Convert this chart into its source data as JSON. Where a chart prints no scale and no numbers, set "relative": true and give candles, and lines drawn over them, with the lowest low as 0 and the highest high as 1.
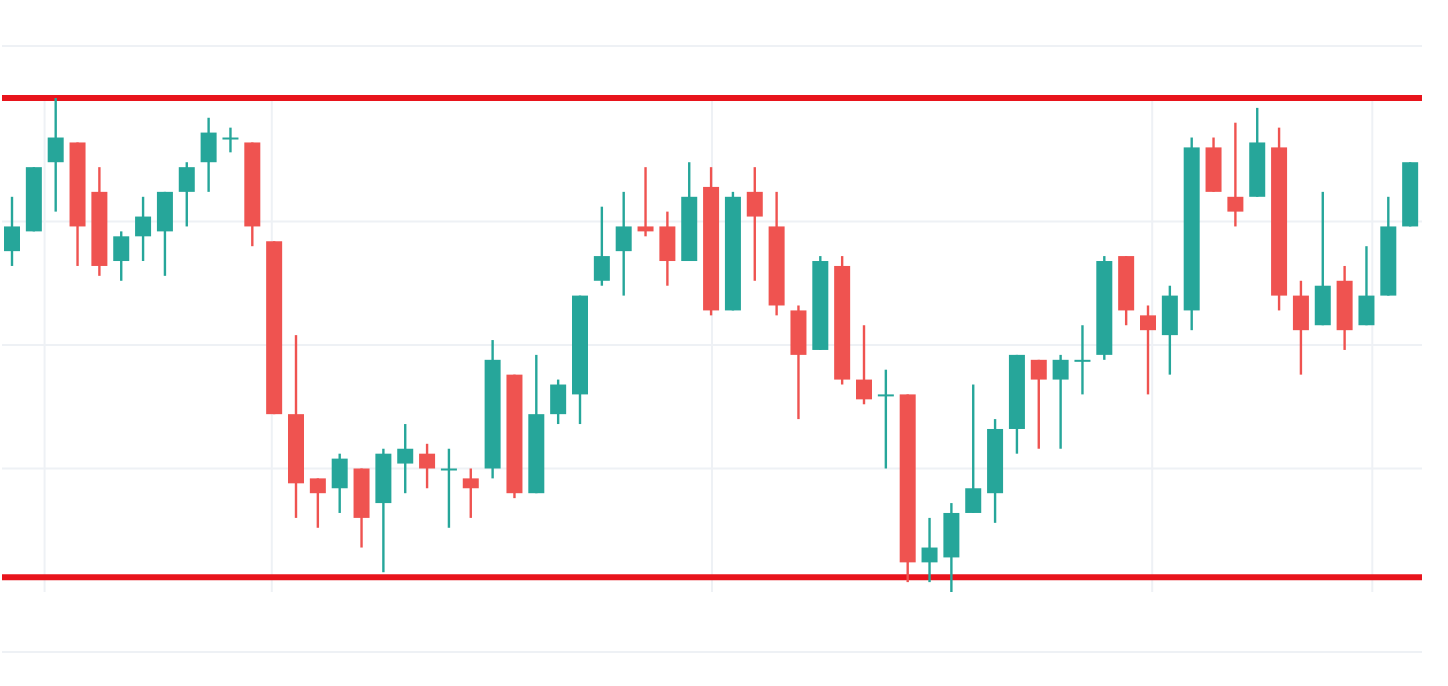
{
  "chart_data": {
    "type": "candlestick",
    "relative": true,
    "grid": true,
    "tick_labels": false,
    "categories": [
      null,
      null,
      null,
      null,
      null,
      null,
      null,
      null,
      null,
      null,
      null,
      null,
      null,
      null,
      null,
      null,
      null,
      null,
      null,
      null,
      null,
      null,
      null,
      null,
      null,
      null,
      null,
      null,
      null,
      null,
      null,
      null,
      null,
      null,
      null,
      null,
      null,
      null,
      null,
      null,
      null,
      null,
      null,
      null,
      null,
      null,
      null,
      null,
      null,
      null,
      null,
      null,
      null,
      null,
      null,
      null,
      null,
      null,
      null,
      null,
      null,
      null,
      null,
      null,
      null
    ],
    "ohlc": [
      [
        0.69,
        0.8,
        0.66,
        0.74
      ],
      [
        0.73,
        0.86,
        0.73,
        0.86
      ],
      [
        0.87,
        1.0,
        0.77,
        0.92
      ],
      [
        0.91,
        0.91,
        0.66,
        0.74
      ],
      [
        0.81,
        0.86,
        0.64,
        0.66
      ],
      [
        0.67,
        0.73,
        0.63,
        0.72
      ],
      [
        0.72,
        0.8,
        0.67,
        0.76
      ],
      [
        0.73,
        0.81,
        0.64,
        0.81
      ],
      [
        0.81,
        0.87,
        0.74,
        0.86
      ],
      [
        0.87,
        0.96,
        0.81,
        0.93
      ],
      [
        0.92,
        0.94,
        0.89,
        0.92
      ],
      [
        0.91,
        0.91,
        0.7,
        0.74
      ],
      [
        0.71,
        0.71,
        0.36,
        0.36
      ],
      [
        0.36,
        0.52,
        0.15,
        0.22
      ],
      [
        0.23,
        0.23,
        0.13,
        0.2
      ],
      [
        0.21,
        0.28,
        0.16,
        0.27
      ],
      [
        0.25,
        0.25,
        0.09,
        0.15
      ],
      [
        0.18,
        0.29,
        0.04,
        0.28
      ],
      [
        0.26,
        0.34,
        0.2,
        0.29
      ],
      [
        0.28,
        0.3,
        0.21,
        0.25
      ],
      [
        0.25,
        0.29,
        0.13,
        0.25
      ],
      [
        0.23,
        0.25,
        0.15,
        0.21
      ],
      [
        0.25,
        0.51,
        0.23,
        0.47
      ],
      [
        0.44,
        0.44,
        0.19,
        0.2
      ],
      [
        0.2,
        0.48,
        0.2,
        0.36
      ],
      [
        0.36,
        0.43,
        0.34,
        0.42
      ],
      [
        0.4,
        0.6,
        0.34,
        0.6
      ],
      [
        0.63,
        0.78,
        0.62,
        0.68
      ],
      [
        0.69,
        0.81,
        0.6,
        0.74
      ],
      [
        0.74,
        0.86,
        0.72,
        0.73
      ],
      [
        0.74,
        0.77,
        0.62,
        0.67
      ],
      [
        0.67,
        0.87,
        0.67,
        0.8
      ],
      [
        0.82,
        0.86,
        0.56,
        0.57
      ],
      [
        0.57,
        0.81,
        0.57,
        0.8
      ],
      [
        0.81,
        0.86,
        0.63,
        0.76
      ],
      [
        0.74,
        0.81,
        0.56,
        0.58
      ],
      [
        0.57,
        0.58,
        0.35,
        0.48
      ],
      [
        0.49,
        0.68,
        0.49,
        0.67
      ],
      [
        0.66,
        0.68,
        0.42,
        0.43
      ],
      [
        0.43,
        0.54,
        0.38,
        0.39
      ],
      [
        0.4,
        0.45,
        0.25,
        0.4
      ],
      [
        0.4,
        0.4,
        0.02,
        0.06
      ],
      [
        0.06,
        0.15,
        0.02,
        0.09
      ],
      [
        0.07,
        0.18,
        0,
        0.16
      ],
      [
        0.16,
        0.42,
        0.16,
        0.21
      ],
      [
        0.2,
        0.35,
        0.14,
        0.33
      ],
      [
        0.33,
        0.48,
        0.28,
        0.48
      ],
      [
        0.47,
        0.47,
        0.29,
        0.43
      ],
      [
        0.43,
        0.48,
        0.29,
        0.47
      ],
      [
        0.47,
        0.54,
        0.4,
        0.47
      ],
      [
        0.48,
        0.68,
        0.47,
        0.67
      ],
      [
        0.68,
        0.68,
        0.54,
        0.57
      ],
      [
        0.56,
        0.58,
        0.4,
        0.53
      ],
      [
        0.52,
        0.62,
        0.44,
        0.6
      ],
      [
        0.57,
        0.92,
        0.53,
        0.9
      ],
      [
        0.9,
        0.92,
        0.81,
        0.81
      ],
      [
        0.8,
        0.95,
        0.74,
        0.77
      ],
      [
        0.8,
        0.98,
        0.8,
        0.91
      ],
      [
        0.9,
        0.94,
        0.57,
        0.6
      ],
      [
        0.6,
        0.63,
        0.44,
        0.53
      ],
      [
        0.54,
        0.81,
        0.54,
        0.62
      ],
      [
        0.63,
        0.66,
        0.49,
        0.53
      ],
      [
        0.54,
        0.7,
        0.54,
        0.6
      ],
      [
        0.6,
        0.8,
        0.6,
        0.74
      ],
      [
        0.74,
        0.87,
        0.74,
        0.87
      ]
    ],
    "colors": [
      "#26a69a",
      "#26a69a",
      "#26a69a",
      "#ef5350",
      "#ef5350",
      "#26a69a",
      "#26a69a",
      "#26a69a",
      "#26a69a",
      "#26a69a",
      "#26a69a",
      "#ef5350",
      "#ef5350",
      "#ef5350",
      "#ef5350",
      "#26a69a",
      "#ef5350",
      "#26a69a",
      "#26a69a",
      "#ef5350",
      "#26a69a",
      "#ef5350",
      "#26a69a",
      "#ef5350",
      "#26a69a",
      "#26a69a",
      "#26a69a",
      "#26a69a",
      "#26a69a",
      "#ef5350",
      "#ef5350",
      "#26a69a",
      "#ef5350",
      "#26a69a",
      "#ef5350",
      "#ef5350",
      "#ef5350",
      "#26a69a",
      "#ef5350",
      "#ef5350",
      "#26a69a",
      "#ef5350",
      "#26a69a",
      "#26a69a",
      "#26a69a",
      "#26a69a",
      "#26a69a",
      "#ef5350",
      "#26a69a",
      "#26a69a",
      "#26a69a",
      "#ef5350",
      "#ef5350",
      "#26a69a",
      "#26a69a",
      "#ef5350",
      "#ef5350",
      "#26a69a",
      "#ef5350",
      "#ef5350",
      "#26a69a",
      "#ef5350",
      "#26a69a",
      "#26a69a",
      "#26a69a"
    ],
    "ref_lines": [
      {
        "axis": "y",
        "value": 1.0,
        "color": "#e8141c"
      },
      {
        "axis": "y",
        "value": 0.03,
        "color": "#e8141c"
      }
    ]
  }
}
